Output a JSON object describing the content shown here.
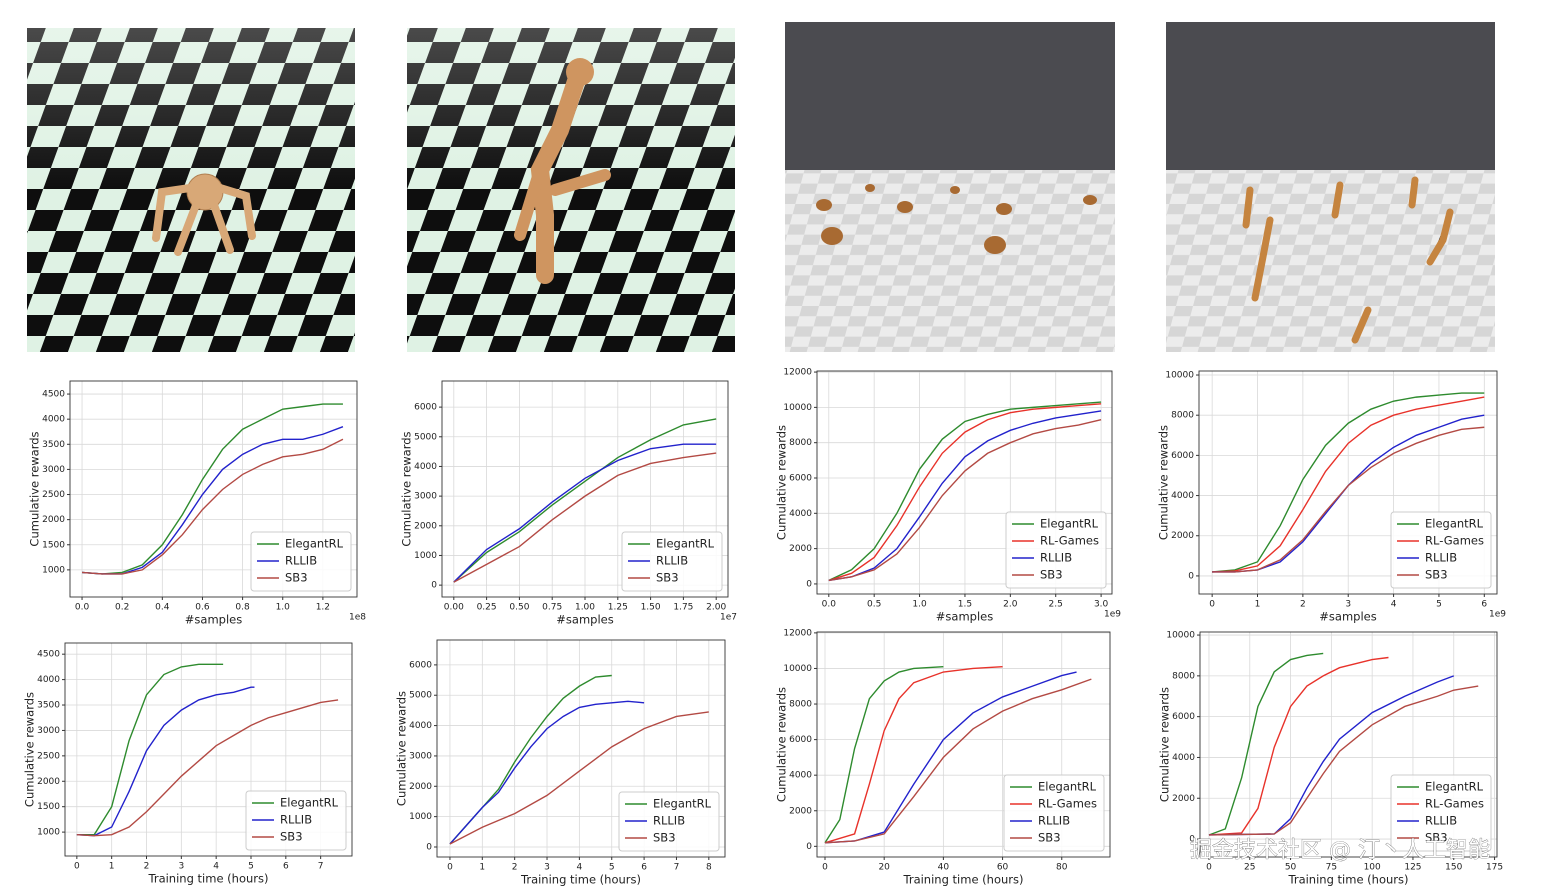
{
  "chart_data": [
    {
      "type": "line",
      "y_label": "Cumulative rewards",
      "x_label": "#samples",
      "x_offset": "1e8",
      "grid": true,
      "legend": "lower right",
      "xlim": [
        -0.06,
        1.37
      ],
      "ylim": [
        460,
        4760
      ],
      "xticks": [
        {
          "value": 0,
          "label": "0.0"
        },
        0.2,
        0.4,
        0.6,
        0.8,
        {
          "value": 1,
          "label": "1.0"
        },
        1.2
      ],
      "yticks": [
        1000,
        1500,
        2000,
        2500,
        3000,
        3500,
        4000,
        4500
      ],
      "x": [
        0,
        0.1,
        0.2,
        0.3,
        0.4,
        0.5,
        0.6,
        0.7,
        0.8,
        0.9,
        1.0,
        1.1,
        1.2,
        1.3
      ],
      "series": [
        {
          "name": "ElegantRL",
          "color": "#2e8b2e",
          "values": [
            950,
            920,
            950,
            1100,
            1500,
            2100,
            2800,
            3400,
            3800,
            4000,
            4200,
            4250,
            4300,
            4300
          ]
        },
        {
          "name": "RLLIB",
          "color": "#2222cc",
          "values": [
            950,
            920,
            920,
            1050,
            1350,
            1900,
            2500,
            3000,
            3300,
            3500,
            3600,
            3600,
            3700,
            3850
          ]
        },
        {
          "name": "SB3",
          "color": "#b34a44",
          "values": [
            950,
            920,
            920,
            1000,
            1300,
            1700,
            2200,
            2600,
            2900,
            3100,
            3250,
            3300,
            3400,
            3600
          ]
        }
      ]
    },
    {
      "type": "line",
      "y_label": "Cumulative rewards",
      "x_label": "#samples",
      "x_offset": "1e7",
      "grid": true,
      "legend": "lower right",
      "xlim": [
        -0.09,
        2.09
      ],
      "ylim": [
        -400,
        6880
      ],
      "xticks": [
        {
          "value": 0,
          "label": "0.00"
        },
        0.25,
        {
          "value": 0.5,
          "label": "0.50"
        },
        0.75,
        {
          "value": 1,
          "label": "1.00"
        },
        1.25,
        {
          "value": 1.5,
          "label": "1.50"
        },
        1.75,
        {
          "value": 2,
          "label": "2.00"
        }
      ],
      "yticks": [
        0,
        1000,
        2000,
        3000,
        4000,
        5000,
        6000
      ],
      "x": [
        0,
        0.25,
        0.5,
        0.75,
        1.0,
        1.25,
        1.5,
        1.75,
        2.0
      ],
      "series": [
        {
          "name": "ElegantRL",
          "color": "#2e8b2e",
          "values": [
            100,
            1100,
            1800,
            2700,
            3500,
            4300,
            4900,
            5400,
            5600
          ]
        },
        {
          "name": "RLLIB",
          "color": "#2222cc",
          "values": [
            100,
            1200,
            1900,
            2800,
            3600,
            4200,
            4600,
            4750,
            4750
          ]
        },
        {
          "name": "SB3",
          "color": "#b34a44",
          "values": [
            100,
            700,
            1300,
            2200,
            3000,
            3700,
            4100,
            4300,
            4450
          ]
        }
      ]
    },
    {
      "type": "line",
      "y_label": "Cumulative rewards",
      "x_label": "#samples",
      "x_offset": "1e9",
      "grid": true,
      "legend": "lower right",
      "xlim": [
        -0.13,
        3.12
      ],
      "ylim": [
        -570,
        12060
      ],
      "xticks": [
        {
          "value": 0,
          "label": "0.0"
        },
        0.5,
        {
          "value": 1,
          "label": "1.0"
        },
        1.5,
        {
          "value": 2,
          "label": "2.0"
        },
        2.5,
        {
          "value": 3,
          "label": "3.0"
        }
      ],
      "yticks": [
        0,
        2000,
        4000,
        6000,
        8000,
        10000,
        12000
      ],
      "x": [
        0,
        0.25,
        0.5,
        0.75,
        1.0,
        1.25,
        1.5,
        1.75,
        2.0,
        2.25,
        2.5,
        2.75,
        3.0
      ],
      "series": [
        {
          "name": "ElegantRL",
          "color": "#2e8b2e",
          "values": [
            200,
            800,
            2000,
            4000,
            6500,
            8200,
            9200,
            9600,
            9900,
            10000,
            10100,
            10200,
            10300
          ]
        },
        {
          "name": "RL-Games",
          "color": "#e8322a",
          "values": [
            200,
            600,
            1500,
            3300,
            5500,
            7400,
            8600,
            9300,
            9700,
            9900,
            10000,
            10100,
            10200
          ]
        },
        {
          "name": "RLLIB",
          "color": "#2222cc",
          "values": [
            200,
            400,
            900,
            2000,
            3800,
            5700,
            7200,
            8100,
            8700,
            9100,
            9400,
            9600,
            9800
          ]
        },
        {
          "name": "SB3",
          "color": "#b34a44",
          "values": [
            200,
            400,
            800,
            1700,
            3200,
            5000,
            6400,
            7400,
            8000,
            8500,
            8800,
            9000,
            9300
          ]
        }
      ]
    },
    {
      "type": "line",
      "y_label": "Cumulative rewards",
      "x_label": "#samples",
      "x_offset": "1e9",
      "grid": true,
      "legend": "lower right",
      "xlim": [
        -0.29,
        6.28
      ],
      "ylim": [
        -900,
        10200
      ],
      "xticks": [
        0,
        1,
        2,
        3,
        4,
        5,
        6
      ],
      "yticks": [
        0,
        2000,
        4000,
        6000,
        8000,
        10000
      ],
      "x": [
        0,
        0.5,
        1,
        1.5,
        2,
        2.5,
        3,
        3.5,
        4,
        4.5,
        5,
        5.5,
        6
      ],
      "series": [
        {
          "name": "ElegantRL",
          "color": "#2e8b2e",
          "values": [
            200,
            300,
            700,
            2500,
            4800,
            6500,
            7600,
            8300,
            8700,
            8900,
            9000,
            9100,
            9100
          ]
        },
        {
          "name": "RL-Games",
          "color": "#e8322a",
          "values": [
            200,
            250,
            500,
            1500,
            3300,
            5200,
            6600,
            7500,
            8000,
            8300,
            8500,
            8700,
            8900
          ]
        },
        {
          "name": "RLLIB",
          "color": "#2222cc",
          "values": [
            200,
            200,
            300,
            700,
            1700,
            3100,
            4500,
            5600,
            6400,
            7000,
            7400,
            7800,
            8000
          ]
        },
        {
          "name": "SB3",
          "color": "#b34a44",
          "values": [
            200,
            200,
            300,
            800,
            1800,
            3200,
            4500,
            5400,
            6100,
            6600,
            7000,
            7300,
            7400
          ]
        }
      ]
    },
    {
      "type": "line",
      "y_label": "Cumulative rewards",
      "x_label": "Training time (hours)",
      "grid": true,
      "legend": "lower right",
      "xlim": [
        -0.34,
        7.9
      ],
      "ylim": [
        530,
        4720
      ],
      "xticks": [
        0,
        1,
        2,
        3,
        4,
        5,
        6,
        7
      ],
      "yticks": [
        1000,
        1500,
        2000,
        2500,
        3000,
        3500,
        4000,
        4500
      ],
      "series": [
        {
          "name": "ElegantRL",
          "color": "#2e8b2e",
          "x": [
            0,
            0.5,
            1,
            1.5,
            2,
            2.5,
            3,
            3.5,
            4,
            4.2
          ],
          "values": [
            950,
            950,
            1500,
            2800,
            3700,
            4100,
            4250,
            4300,
            4300,
            4300
          ]
        },
        {
          "name": "RLLIB",
          "color": "#2222cc",
          "x": [
            0,
            0.5,
            1,
            1.5,
            2,
            2.5,
            3,
            3.5,
            4,
            4.5,
            5,
            5.1
          ],
          "values": [
            950,
            930,
            1100,
            1800,
            2600,
            3100,
            3400,
            3600,
            3700,
            3750,
            3850,
            3850
          ]
        },
        {
          "name": "SB3",
          "color": "#b34a44",
          "x": [
            0,
            0.5,
            1,
            1.5,
            2,
            2.5,
            3,
            3.5,
            4,
            4.5,
            5,
            5.5,
            6,
            6.5,
            7,
            7.5
          ],
          "values": [
            950,
            930,
            950,
            1100,
            1400,
            1750,
            2100,
            2400,
            2700,
            2900,
            3100,
            3250,
            3350,
            3450,
            3550,
            3600
          ]
        }
      ]
    },
    {
      "type": "line",
      "y_label": "Cumulative rewards",
      "x_label": "Training time (hours)",
      "grid": true,
      "legend": "lower right",
      "xlim": [
        -0.4,
        8.5
      ],
      "ylim": [
        -330,
        6820
      ],
      "xticks": [
        0,
        1,
        2,
        3,
        4,
        5,
        6,
        7,
        8
      ],
      "yticks": [
        0,
        1000,
        2000,
        3000,
        4000,
        5000,
        6000
      ],
      "series": [
        {
          "name": "ElegantRL",
          "color": "#2e8b2e",
          "x": [
            0,
            0.5,
            1,
            1.5,
            2,
            2.5,
            3,
            3.5,
            4,
            4.5,
            5
          ],
          "values": [
            100,
            700,
            1300,
            1900,
            2800,
            3600,
            4300,
            4900,
            5300,
            5600,
            5650
          ]
        },
        {
          "name": "RLLIB",
          "color": "#2222cc",
          "x": [
            0,
            0.5,
            1,
            1.5,
            2,
            2.5,
            3,
            3.5,
            4,
            4.5,
            5,
            5.5,
            6
          ],
          "values": [
            100,
            700,
            1300,
            1800,
            2600,
            3300,
            3900,
            4300,
            4600,
            4700,
            4750,
            4800,
            4750
          ]
        },
        {
          "name": "SB3",
          "color": "#b34a44",
          "x": [
            0,
            1,
            2,
            3,
            4,
            5,
            6,
            7,
            8
          ],
          "values": [
            100,
            650,
            1100,
            1700,
            2500,
            3300,
            3900,
            4300,
            4450
          ]
        }
      ]
    },
    {
      "type": "line",
      "y_label": "Cumulative rewards",
      "x_label": "Training time (hours)",
      "grid": true,
      "legend": "lower right",
      "xlim": [
        -2.7,
        96.3
      ],
      "ylim": [
        -600,
        12050
      ],
      "xticks": [
        0,
        20,
        40,
        60,
        80
      ],
      "yticks": [
        0,
        2000,
        4000,
        6000,
        8000,
        10000,
        12000
      ],
      "series": [
        {
          "name": "ElegantRL",
          "color": "#2e8b2e",
          "x": [
            0,
            5,
            10,
            15,
            20,
            25,
            30,
            40
          ],
          "values": [
            200,
            1500,
            5500,
            8300,
            9300,
            9800,
            10000,
            10100
          ]
        },
        {
          "name": "RL-Games",
          "color": "#e8322a",
          "x": [
            0,
            10,
            15,
            20,
            25,
            30,
            40,
            50,
            60
          ],
          "values": [
            200,
            700,
            3500,
            6500,
            8300,
            9200,
            9800,
            10000,
            10100
          ]
        },
        {
          "name": "RLLIB",
          "color": "#2222cc",
          "x": [
            0,
            10,
            20,
            30,
            40,
            50,
            60,
            70,
            80,
            85
          ],
          "values": [
            200,
            300,
            800,
            3500,
            6000,
            7500,
            8400,
            9000,
            9600,
            9800
          ]
        },
        {
          "name": "SB3",
          "color": "#b34a44",
          "x": [
            0,
            10,
            20,
            30,
            40,
            50,
            60,
            70,
            80,
            90
          ],
          "values": [
            200,
            300,
            700,
            2800,
            5000,
            6600,
            7600,
            8300,
            8800,
            9400
          ]
        }
      ]
    },
    {
      "type": "line",
      "y_label": "Cumulative rewards",
      "x_label": "Training time (hours)",
      "grid": true,
      "legend": "lower right",
      "xlim": [
        -5.5,
        176.5
      ],
      "ylim": [
        -880,
        10150
      ],
      "xticks": [
        0,
        25,
        50,
        75,
        100,
        125,
        150,
        175
      ],
      "yticks": [
        0,
        2000,
        4000,
        6000,
        8000,
        10000
      ],
      "series": [
        {
          "name": "ElegantRL",
          "color": "#2e8b2e",
          "x": [
            0,
            10,
            20,
            30,
            40,
            50,
            60,
            70
          ],
          "values": [
            200,
            500,
            3000,
            6500,
            8200,
            8800,
            9000,
            9100
          ]
        },
        {
          "name": "RL-Games",
          "color": "#e8322a",
          "x": [
            0,
            20,
            30,
            40,
            50,
            60,
            70,
            80,
            100,
            110
          ],
          "values": [
            200,
            300,
            1500,
            4500,
            6500,
            7500,
            8000,
            8400,
            8800,
            8900
          ]
        },
        {
          "name": "RLLIB",
          "color": "#2222cc",
          "x": [
            0,
            40,
            50,
            60,
            70,
            80,
            100,
            120,
            140,
            150
          ],
          "values": [
            200,
            250,
            1000,
            2500,
            3800,
            4900,
            6200,
            7000,
            7700,
            8000
          ]
        },
        {
          "name": "SB3",
          "color": "#b34a44",
          "x": [
            0,
            40,
            50,
            60,
            70,
            80,
            100,
            120,
            140,
            150,
            165
          ],
          "values": [
            200,
            250,
            800,
            2000,
            3200,
            4300,
            5600,
            6500,
            7000,
            7300,
            7500
          ]
        }
      ]
    }
  ],
  "watermark": "掘金技术社区 @ 汀丶人工智能"
}
